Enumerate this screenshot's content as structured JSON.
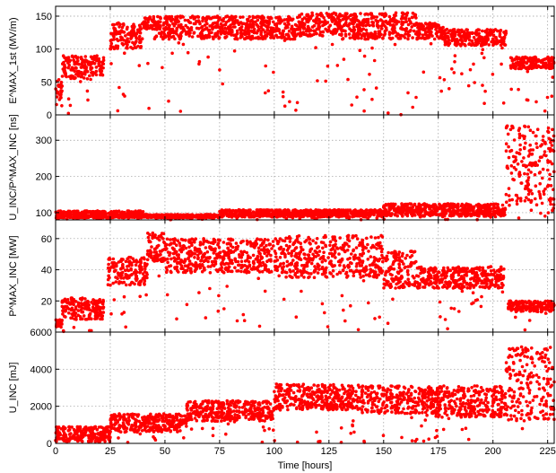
{
  "chart_data": {
    "type": "scatter",
    "x_label": "Time [hours]",
    "x_ticks": [
      0,
      25,
      50,
      75,
      100,
      125,
      150,
      175,
      200,
      225
    ],
    "xlim": [
      0,
      228
    ],
    "marker_color": "#ff0000",
    "grid": true,
    "panels": [
      {
        "name": "E1st",
        "ylabel": "E^MAX_1st (MV/m)",
        "ylim": [
          0,
          165
        ],
        "yticks": [
          0,
          50,
          100,
          150
        ],
        "series": [
          {
            "segments": [
              {
                "x0": 0,
                "x1": 3,
                "y0": 20,
                "y1": 55
              },
              {
                "x0": 3,
                "x1": 16,
                "y0": 55,
                "y1": 90
              },
              {
                "x0": 16,
                "x1": 22,
                "y0": 60,
                "y1": 90
              },
              {
                "x0": 25,
                "x1": 40,
                "y0": 100,
                "y1": 140
              },
              {
                "x0": 40,
                "x1": 45,
                "y0": 130,
                "y1": 150
              },
              {
                "x0": 45,
                "x1": 110,
                "y0": 115,
                "y1": 150
              },
              {
                "x0": 110,
                "x1": 130,
                "y0": 120,
                "y1": 155
              },
              {
                "x0": 130,
                "x1": 165,
                "y0": 115,
                "y1": 155
              },
              {
                "x0": 165,
                "x1": 178,
                "y0": 115,
                "y1": 140
              },
              {
                "x0": 178,
                "x1": 206,
                "y0": 105,
                "y1": 130
              },
              {
                "x0": 208,
                "x1": 228,
                "y0": 70,
                "y1": 88
              }
            ]
          }
        ]
      },
      {
        "name": "duration",
        "ylabel": "U_INC/P^MAX_INC [ns]",
        "ylim": [
          80,
          370
        ],
        "yticks": [
          100,
          200,
          300
        ],
        "series": [
          {
            "segments": [
              {
                "x0": 0,
                "x1": 40,
                "y0": 85,
                "y1": 105
              },
              {
                "x0": 40,
                "x1": 75,
                "y0": 85,
                "y1": 95
              },
              {
                "x0": 75,
                "x1": 150,
                "y0": 88,
                "y1": 108
              },
              {
                "x0": 150,
                "x1": 206,
                "y0": 90,
                "y1": 125
              },
              {
                "x0": 206,
                "x1": 228,
                "y0": 120,
                "y1": 340
              }
            ]
          }
        ]
      },
      {
        "name": "Pinc",
        "ylabel": "P^MAX_INC [MW]",
        "ylim": [
          0,
          72
        ],
        "yticks": [
          20,
          40,
          60
        ],
        "series": [
          {
            "segments": [
              {
                "x0": 0,
                "x1": 3,
                "y0": 3,
                "y1": 8
              },
              {
                "x0": 3,
                "x1": 22,
                "y0": 8,
                "y1": 22
              },
              {
                "x0": 24,
                "x1": 42,
                "y0": 30,
                "y1": 48
              },
              {
                "x0": 42,
                "x1": 50,
                "y0": 45,
                "y1": 64
              },
              {
                "x0": 50,
                "x1": 105,
                "y0": 38,
                "y1": 60
              },
              {
                "x0": 105,
                "x1": 150,
                "y0": 35,
                "y1": 62
              },
              {
                "x0": 150,
                "x1": 165,
                "y0": 28,
                "y1": 52
              },
              {
                "x0": 165,
                "x1": 205,
                "y0": 28,
                "y1": 42
              },
              {
                "x0": 207,
                "x1": 228,
                "y0": 13,
                "y1": 20
              }
            ]
          }
        ]
      },
      {
        "name": "Uinc",
        "ylabel": "U_INC [mJ]",
        "ylim": [
          0,
          6000
        ],
        "yticks": [
          0,
          2000,
          4000,
          6000
        ],
        "series": [
          {
            "segments": [
              {
                "x0": 0,
                "x1": 25,
                "y0": 100,
                "y1": 900
              },
              {
                "x0": 25,
                "x1": 60,
                "y0": 600,
                "y1": 1600
              },
              {
                "x0": 60,
                "x1": 100,
                "y0": 1200,
                "y1": 2300
              },
              {
                "x0": 100,
                "x1": 140,
                "y0": 1800,
                "y1": 3200
              },
              {
                "x0": 140,
                "x1": 175,
                "y0": 1600,
                "y1": 3100
              },
              {
                "x0": 175,
                "x1": 206,
                "y0": 1400,
                "y1": 3100
              },
              {
                "x0": 206,
                "x1": 228,
                "y0": 1200,
                "y1": 5200
              }
            ]
          }
        ]
      }
    ]
  }
}
